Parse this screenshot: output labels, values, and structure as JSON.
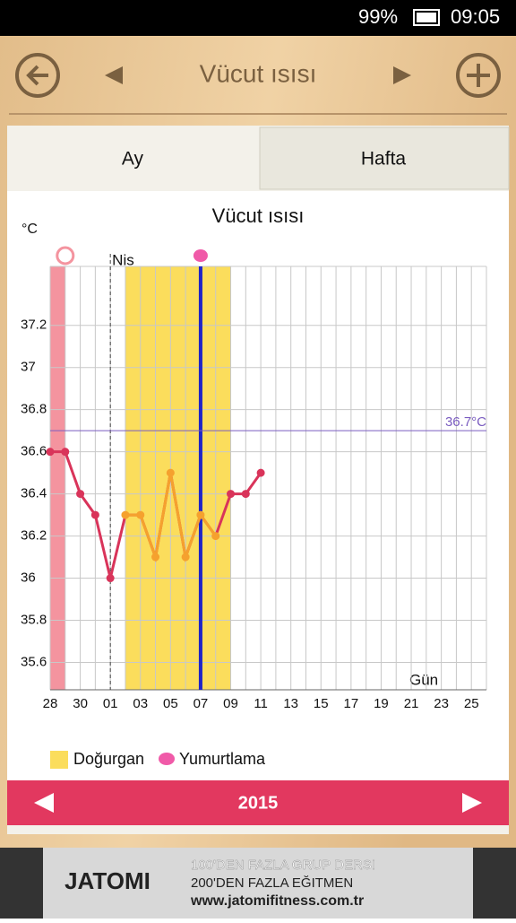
{
  "status_bar": {
    "battery": "99%",
    "time": "09:05"
  },
  "header": {
    "title": "Vücut ısısı"
  },
  "tabs": [
    "Ay",
    "Hafta"
  ],
  "chart_data": {
    "type": "line",
    "title": "Vücut ısısı",
    "y_unit": "°C",
    "x_label": "Gün",
    "categories": [
      "28",
      null,
      "30",
      null,
      "01",
      null,
      "03",
      null,
      "05",
      null,
      "07",
      null,
      "09",
      null,
      "11",
      null,
      "13",
      null,
      "15",
      null,
      "17",
      null,
      "19",
      null,
      "21",
      null,
      "23",
      null,
      "25",
      null
    ],
    "values": [
      36.6,
      36.6,
      36.4,
      36.3,
      36.0,
      36.3,
      36.3,
      36.1,
      36.5,
      36.1,
      36.3,
      36.2,
      36.4,
      36.4,
      36.5,
      null,
      null,
      null,
      null,
      null,
      null,
      null,
      null,
      null,
      null,
      null,
      null,
      null,
      null,
      null
    ],
    "color": "#d9345a",
    "fertile_color": "#f5a12e",
    "fertile_band_color": "#fbdd5c",
    "period_color": "#f4949f",
    "ovulation_color": "#1f24c8",
    "fertile_days": [
      5,
      12
    ],
    "period_days": [
      0,
      1
    ],
    "ovulation_day": 10,
    "month_start": {
      "day": 4,
      "label": "Nis"
    },
    "reference_line": {
      "value": 36.7,
      "label": "36.7°C",
      "color": "#7a5cc0"
    },
    "ylim": [
      35.47,
      37.48
    ],
    "yticks": [
      35.6,
      35.8,
      36,
      36.2,
      36.4,
      36.6,
      36.8,
      37,
      37.2
    ],
    "grid": true
  },
  "legend": [
    "Doğurgan",
    "Yumurtlama"
  ],
  "footer": {
    "year": "2015"
  },
  "ad": {
    "brand": "JATOMI",
    "line1": "100'DEN FAZLA GRUP DERSI",
    "line2": "200'DEN FAZLA EĞITMEN",
    "url": "www.jatomifitness.com.tr"
  }
}
